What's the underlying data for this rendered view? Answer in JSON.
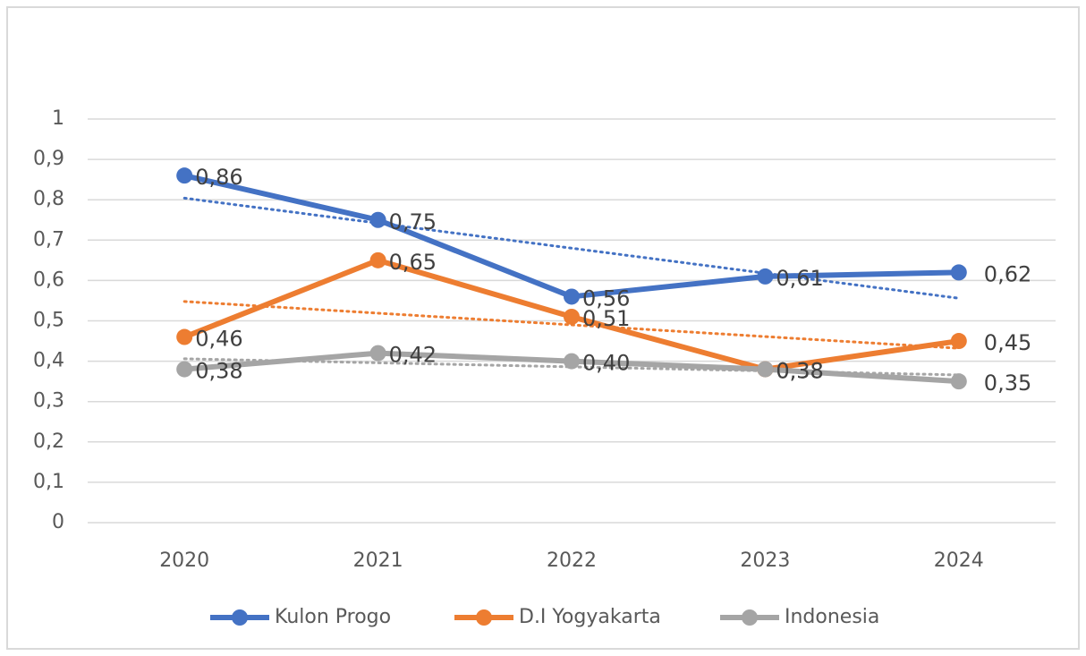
{
  "chart_data": {
    "type": "line",
    "categories": [
      "2020",
      "2021",
      "2022",
      "2023",
      "2024"
    ],
    "series": [
      {
        "name": "Kulon Progo",
        "color": "#4472c4",
        "values": [
          0.86,
          0.75,
          0.56,
          0.61,
          0.62
        ],
        "value_labels": [
          "0,86",
          "0,75",
          "0,56",
          "0,61",
          "0,62"
        ]
      },
      {
        "name": "D.I Yogyakarta",
        "color": "#ed7d31",
        "values": [
          0.46,
          0.65,
          0.51,
          0.38,
          0.45
        ],
        "value_labels": [
          "0,46",
          "0,65",
          "0,51",
          "0,38",
          "0,45"
        ]
      },
      {
        "name": "Indonesia",
        "color": "#a5a5a5",
        "values": [
          0.38,
          0.42,
          0.4,
          0.38,
          0.35
        ],
        "value_labels": [
          "0,38",
          "0,42",
          "0,40",
          "0,38",
          "0,35"
        ]
      }
    ],
    "ylim": [
      0,
      1
    ],
    "yticks": [
      0,
      {
        "value": 0.1,
        "label": "0,1"
      },
      {
        "value": 0.2,
        "label": "0,2"
      },
      {
        "value": 0.3,
        "label": "0,3"
      },
      {
        "value": 0.4,
        "label": "0,4"
      },
      {
        "value": 0.5,
        "label": "0,5"
      },
      {
        "value": 0.6,
        "label": "0,6"
      },
      {
        "value": 0.7,
        "label": "0,7"
      },
      {
        "value": 0.8,
        "label": "0,8"
      },
      {
        "value": 0.9,
        "label": "0,9"
      },
      1
    ],
    "grid": true,
    "trendline": true,
    "legend": "bottom"
  }
}
